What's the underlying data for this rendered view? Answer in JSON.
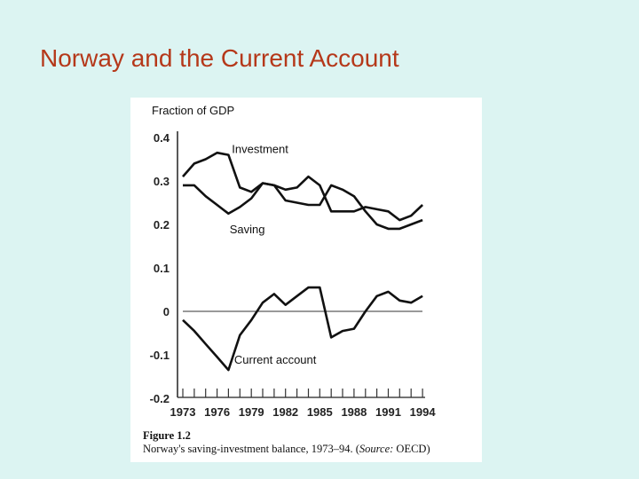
{
  "slide": {
    "title": "Norway and the Current Account",
    "background_color": "#dcf4f2",
    "title_color": "#b5381a"
  },
  "figure": {
    "number": "Figure 1.2",
    "caption_text": "Norway's saving-investment balance, 1973–94. (",
    "caption_source_label": "Source:",
    "caption_source_value": " OECD)"
  },
  "chart_data": {
    "type": "line",
    "title": "",
    "ylabel": "Fraction of GDP",
    "xlabel": "",
    "ylim": [
      -0.2,
      0.4
    ],
    "yticks": [
      0.4,
      0.3,
      0.2,
      0.1,
      0,
      -0.1,
      -0.2
    ],
    "ytick_labels": [
      "0.4",
      "0.3",
      "0.2",
      "0.1",
      "0",
      "-0.1",
      "-0.2"
    ],
    "xtick_labels": [
      "1973",
      "1976",
      "1979",
      "1982",
      "1985",
      "1988",
      "1991",
      "1994"
    ],
    "x": [
      1973,
      1974,
      1975,
      1976,
      1977,
      1978,
      1979,
      1980,
      1981,
      1982,
      1983,
      1984,
      1985,
      1986,
      1987,
      1988,
      1989,
      1990,
      1991,
      1992,
      1993,
      1994
    ],
    "grid": false,
    "legend": "inline labels",
    "zero_line": true,
    "series": [
      {
        "name": "Investment",
        "values": [
          0.31,
          0.34,
          0.35,
          0.365,
          0.36,
          0.285,
          0.275,
          0.295,
          0.29,
          0.28,
          0.285,
          0.31,
          0.29,
          0.23,
          0.23,
          0.23,
          0.24,
          0.235,
          0.23,
          0.21,
          0.22,
          0.245
        ]
      },
      {
        "name": "Saving",
        "values": [
          0.29,
          0.29,
          0.265,
          0.245,
          0.225,
          0.24,
          0.26,
          0.295,
          0.29,
          0.255,
          0.25,
          0.245,
          0.245,
          0.29,
          0.28,
          0.265,
          0.23,
          0.2,
          0.19,
          0.19,
          0.2,
          0.21
        ]
      },
      {
        "name": "Current account",
        "values": [
          -0.02,
          -0.045,
          -0.075,
          -0.105,
          -0.135,
          -0.055,
          -0.02,
          0.02,
          0.04,
          0.015,
          0.035,
          0.055,
          0.055,
          -0.06,
          -0.045,
          -0.04,
          0.0,
          0.035,
          0.045,
          0.025,
          0.02,
          0.035
        ]
      }
    ],
    "annotations": [
      {
        "text": "Investment",
        "x": 1977.3,
        "y": 0.375
      },
      {
        "text": "Saving",
        "x": 1977.1,
        "y": 0.19
      },
      {
        "text": "Current account",
        "x": 1977.5,
        "y": -0.11
      }
    ]
  }
}
